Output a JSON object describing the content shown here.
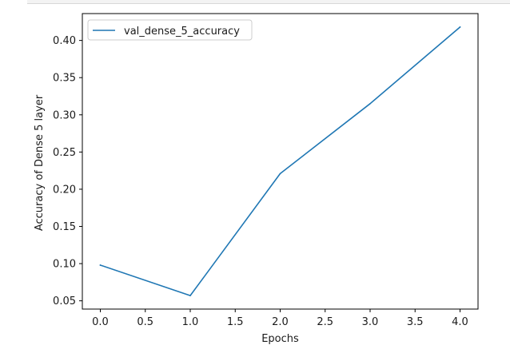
{
  "chart_data": {
    "type": "line",
    "x": [
      0,
      1,
      2,
      3,
      4
    ],
    "series": [
      {
        "name": "val_dense_5_accuracy",
        "values": [
          0.098,
          0.057,
          0.221,
          0.315,
          0.418
        ],
        "color": "#1f77b4"
      }
    ],
    "xlabel": "Epochs",
    "ylabel": "Accuracy of Dense 5 layer",
    "xlim": [
      -0.2,
      4.2
    ],
    "ylim": [
      0.0389,
      0.4361
    ],
    "xticks": [
      0.0,
      0.5,
      1.0,
      1.5,
      2.0,
      2.5,
      3.0,
      3.5,
      4.0
    ],
    "xtick_labels": [
      "0.0",
      "0.5",
      "1.0",
      "1.5",
      "2.0",
      "2.5",
      "3.0",
      "3.5",
      "4.0"
    ],
    "yticks": [
      0.05,
      0.1,
      0.15,
      0.2,
      0.25,
      0.3,
      0.35,
      0.4
    ],
    "ytick_labels": [
      "0.05",
      "0.10",
      "0.15",
      "0.20",
      "0.25",
      "0.30",
      "0.35",
      "0.40"
    ],
    "grid": false,
    "legend_position": "upper-left"
  }
}
